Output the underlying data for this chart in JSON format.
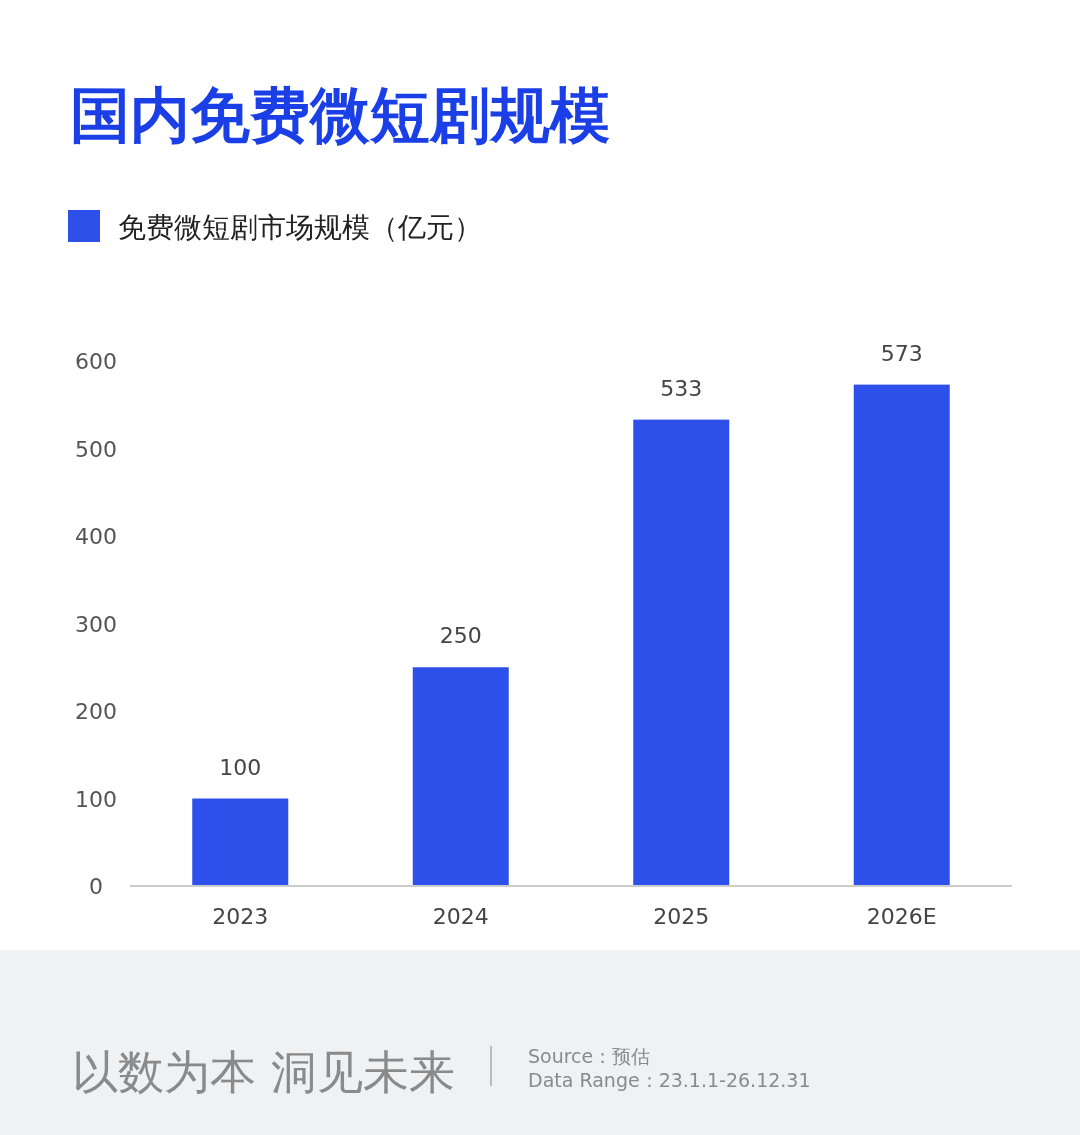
{
  "chart_data": {
    "type": "bar",
    "title": "国内免费微短剧规模",
    "categories": [
      "2023",
      "2024",
      "2025",
      "2026E"
    ],
    "series": [
      {
        "name": "免费微短剧市场规模（亿元）",
        "color": "#2d4fea",
        "values": [
          100,
          250,
          533,
          573
        ]
      }
    ],
    "ylim": [
      0,
      600
    ],
    "yticks": [
      0,
      100,
      200,
      300,
      400,
      500,
      600
    ],
    "grid": false,
    "legend": "top left",
    "data_labels": true,
    "annotations": [
      "以数为本 洞见未来",
      "Source：预估",
      "Data Range：23.1.1-26.12.31"
    ]
  }
}
